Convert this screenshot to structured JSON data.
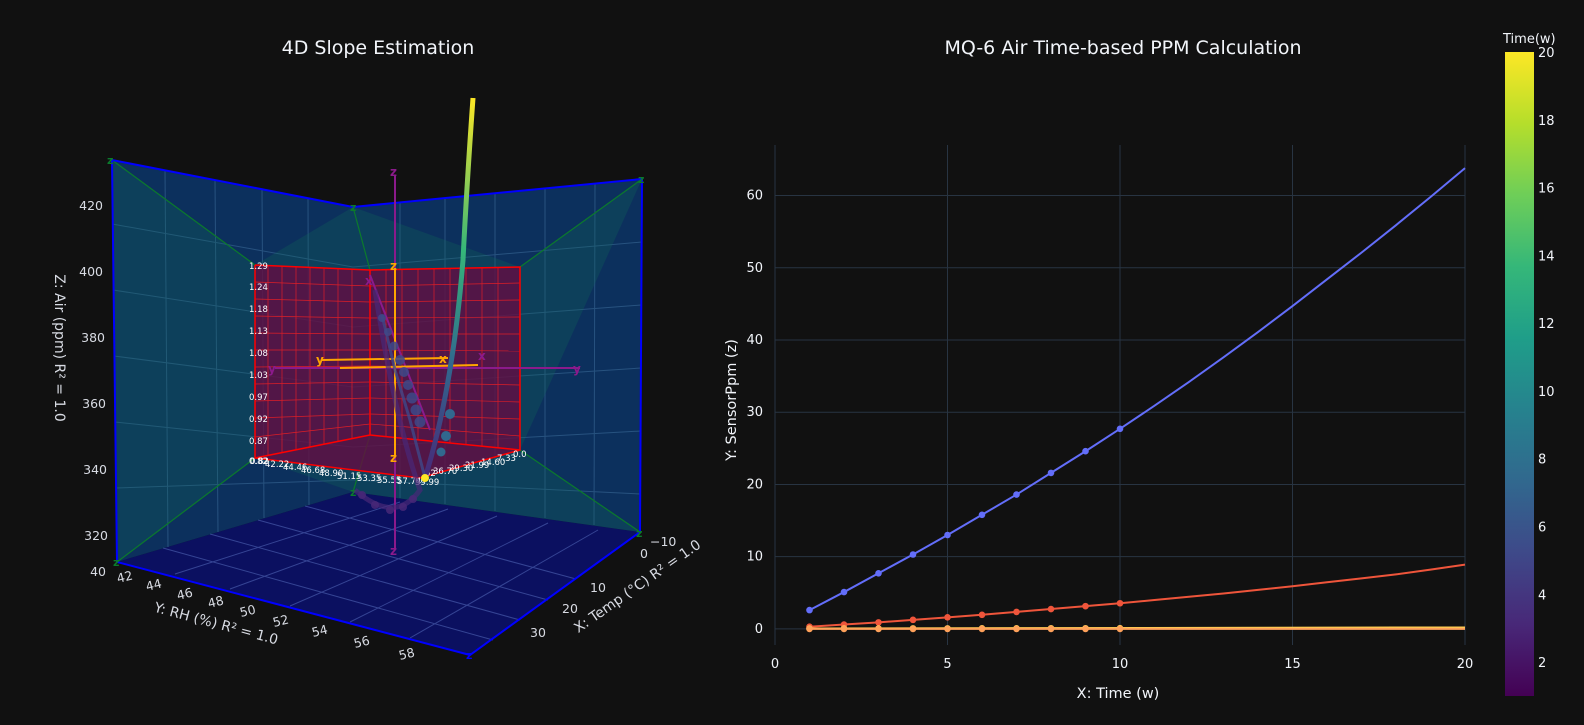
{
  "titles": {
    "left": "4D Slope Estimation",
    "right": "MQ-6 Air Time-based PPM Calculation"
  },
  "colorbar": {
    "title": "Time(w)",
    "colorscale": "viridis",
    "range": [
      1,
      20
    ],
    "ticks": [
      "2",
      "4",
      "6",
      "8",
      "10",
      "12",
      "14",
      "16",
      "18",
      "20"
    ]
  },
  "scene3d": {
    "xaxis_title": "X: Temp (°C) R² = 1.0",
    "yaxis_title": "Y: RH (%) R² = 1.0",
    "zaxis_title": "Z: Air (ppm) R² = 1.0",
    "x_ticks": [
      "−10",
      "0",
      "10",
      "20",
      "30",
      "40"
    ],
    "y_ticks": [
      "42",
      "44",
      "46",
      "48",
      "50",
      "52",
      "54",
      "56",
      "58"
    ],
    "z_ticks": [
      "320",
      "340",
      "360",
      "380",
      "400",
      "420"
    ],
    "corner_tick": "40",
    "inner_box_z_ticks": [
      "1.29",
      "1.24",
      "1.18",
      "1.13",
      "1.08",
      "1.03",
      "0.97",
      "0.92",
      "0.87",
      "0.82"
    ],
    "inner_box_floor_ticks": [
      "0.82",
      "42.22",
      "44.46",
      "46.68",
      "48.90",
      "51.15",
      "53.35",
      "55.55",
      "57.74",
      "59.99",
      "52",
      "36.70",
      "29.30",
      "21.99",
      "14.60",
      "7.33",
      "0.0"
    ],
    "axis_markers": {
      "x": "x",
      "y": "y",
      "z": "z"
    },
    "colors": {
      "outer_box": "#0000ff",
      "wall_fill": "#0b1060",
      "slope_plane": "#0e6e58",
      "inner_box": "#ff0000",
      "inner_fill": "#6a0840",
      "axis_purple": "#8b1a8b",
      "axis_orange": "#ffa500",
      "corner_green": "#0b7a2c"
    }
  },
  "chart_data": {
    "type": "line",
    "title": "MQ-6 Air Time-based PPM Calculation",
    "xlabel": "X: Time (w)",
    "ylabel": "Y: SensorPpm (z)",
    "xlim": [
      0,
      20
    ],
    "ylim": [
      -5,
      67
    ],
    "x_ticks": [
      0,
      5,
      10,
      15,
      20
    ],
    "y_ticks": [
      0,
      10,
      20,
      30,
      40,
      50,
      60
    ],
    "grid": true,
    "legend": "none",
    "series": [
      {
        "color": "#636efa",
        "markers_x": [
          1,
          2,
          3,
          4,
          5,
          6,
          7,
          8,
          9,
          10
        ],
        "markers_y": [
          2.6,
          5.1,
          7.7,
          10.3,
          13.0,
          15.8,
          18.6,
          21.6,
          24.6,
          27.7
        ],
        "line_x": [
          1,
          2,
          3,
          4,
          5,
          6,
          7,
          8,
          9,
          10,
          11,
          12,
          13,
          14,
          15,
          16,
          17,
          18,
          19,
          20
        ],
        "line_y": [
          2.6,
          5.1,
          7.7,
          10.3,
          13.0,
          15.8,
          18.6,
          21.6,
          24.6,
          27.7,
          30.9,
          34.2,
          37.6,
          41.1,
          44.7,
          48.4,
          52.1,
          55.9,
          59.8,
          63.8
        ]
      },
      {
        "color": "#ef553b",
        "markers_x": [
          1,
          2,
          3,
          4,
          5,
          6,
          7,
          8,
          9,
          10
        ],
        "markers_y": [
          0.3,
          0.6,
          0.9,
          1.25,
          1.6,
          1.95,
          2.35,
          2.75,
          3.15,
          3.55
        ],
        "line_x": [
          1,
          2,
          3,
          4,
          5,
          6,
          7,
          8,
          9,
          10,
          11,
          12,
          13,
          14,
          15,
          16,
          17,
          18,
          19,
          20
        ],
        "line_y": [
          0.3,
          0.6,
          0.9,
          1.25,
          1.6,
          1.95,
          2.35,
          2.75,
          3.15,
          3.55,
          4.0,
          4.45,
          4.9,
          5.4,
          5.9,
          6.45,
          7.0,
          7.55,
          8.2,
          8.9
        ]
      },
      {
        "color": "#fecb52",
        "markers_x": [
          1,
          2,
          3,
          4,
          5,
          6,
          7,
          8,
          9,
          10
        ],
        "markers_y": [
          0.05,
          0.06,
          0.06,
          0.07,
          0.07,
          0.08,
          0.08,
          0.09,
          0.09,
          0.1
        ],
        "line_x": [
          1,
          20
        ],
        "line_y": [
          0.05,
          0.2
        ]
      },
      {
        "color": "#ffa15a",
        "markers_x": [
          1,
          2,
          3,
          4,
          5,
          6,
          7,
          8,
          9,
          10
        ],
        "markers_y": [
          0,
          0,
          0,
          0,
          0,
          0,
          0,
          0,
          0,
          0
        ],
        "line_x": [
          1,
          20
        ],
        "line_y": [
          0,
          0
        ]
      }
    ]
  }
}
